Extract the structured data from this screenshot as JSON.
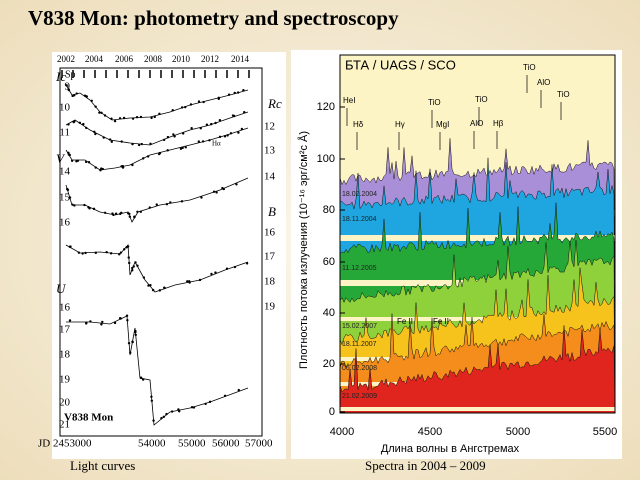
{
  "header": {
    "title": "V838 Mon: photometry and spectroscopy"
  },
  "light_curves": {
    "years": [
      "2002",
      "2004",
      "2006",
      "2008",
      "2010",
      "2012",
      "2014"
    ],
    "sp_label": "Sp",
    "star": "V838 Mon",
    "he_label": "Hα",
    "left_bands": [
      {
        "band": "Ic",
        "ticks": [
          "9",
          "10",
          "11"
        ]
      },
      {
        "band": "V",
        "ticks": [
          "14",
          "15",
          "16"
        ]
      },
      {
        "band": "U",
        "ticks": [
          "16",
          "17",
          "18",
          "19",
          "20",
          "21"
        ]
      }
    ],
    "right_bands": [
      {
        "band": "Rc",
        "ticks": [
          "12",
          "13",
          "14"
        ]
      },
      {
        "band": "B",
        "ticks": [
          "16",
          "17",
          "18",
          "19"
        ]
      }
    ],
    "jd_ticks": [
      "JD 2453000",
      "54000",
      "55000",
      "56000",
      "57000"
    ],
    "caption": "Light curves"
  },
  "spectra": {
    "title": "БТА / UAGS / SCO",
    "y_axis_label": "Плотность потока излучения (10⁻¹⁶ эрг/см²с Å)",
    "x_axis_label": "Длина волны в Ангстремах",
    "yticks": [
      "0",
      "20",
      "40",
      "60",
      "80",
      "100",
      "120"
    ],
    "xticks": [
      "4000",
      "4500",
      "5000",
      "5500"
    ],
    "dates": [
      "18.02.2004",
      "18.11.2004",
      "11.12.2005",
      "15.02.2007",
      "18.11.2007",
      "06.02.2008",
      "21.02.2009"
    ],
    "lines": [
      "HeI",
      "Hδ",
      "Hγ",
      "TiO",
      "MgI",
      "TiO",
      "AlO",
      "Hβ",
      "TiO",
      "AlO",
      "TiO",
      "Fe II",
      "Fe II"
    ],
    "caption": "Spectra  in  2004 – 2009"
  }
}
